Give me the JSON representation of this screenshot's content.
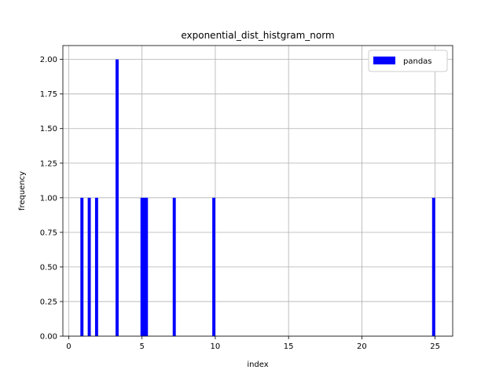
{
  "chart_data": {
    "type": "bar",
    "title": "exponential_dist_histgram_norm",
    "xlabel": "index",
    "ylabel": "frequency",
    "xlim": [
      -0.4,
      26.2
    ],
    "ylim": [
      0,
      2.1
    ],
    "xticks": [
      0,
      5,
      10,
      15,
      20,
      25
    ],
    "yticks": [
      0.0,
      0.25,
      0.5,
      0.75,
      1.0,
      1.25,
      1.5,
      1.75,
      2.0
    ],
    "ytick_labels": [
      "0.00",
      "0.25",
      "0.50",
      "0.75",
      "1.00",
      "1.25",
      "1.50",
      "1.75",
      "2.00"
    ],
    "grid": true,
    "legend_position": "top-right",
    "series": [
      {
        "name": "pandas",
        "color": "#0000ff",
        "x": [
          0.9,
          1.4,
          1.9,
          3.3,
          5.0,
          5.2,
          5.3,
          7.2,
          9.9,
          24.9
        ],
        "values": [
          1,
          1,
          1,
          2,
          1,
          1,
          1,
          1,
          1,
          1
        ]
      }
    ]
  }
}
